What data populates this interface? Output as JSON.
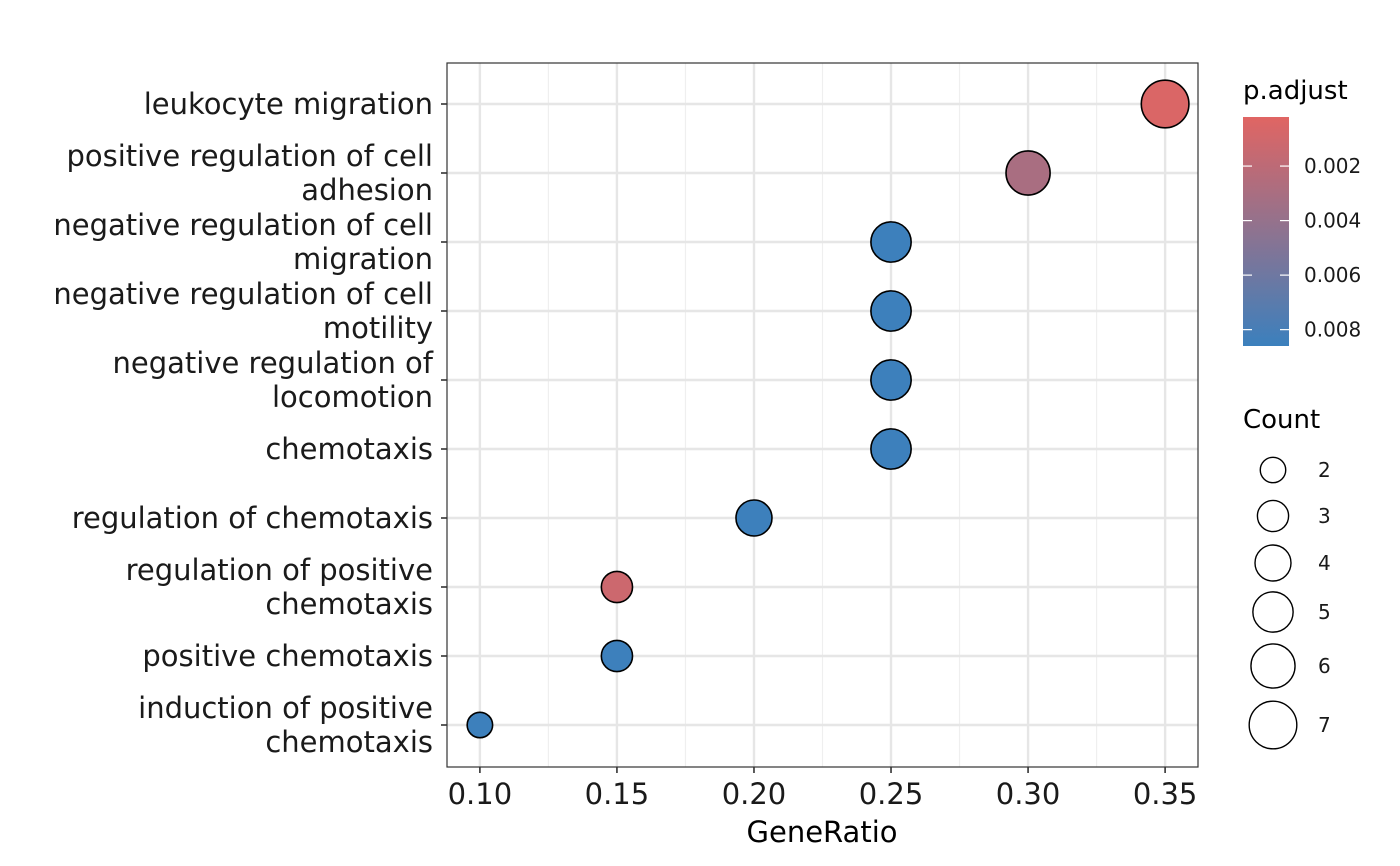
{
  "chart_data": {
    "type": "scatter",
    "title": "",
    "xlabel": "GeneRatio",
    "ylabel": "",
    "xlim": [
      0.088,
      0.362
    ],
    "xticks": [
      0.1,
      0.15,
      0.2,
      0.25,
      0.3,
      0.35
    ],
    "xtick_labels": [
      "0.10",
      "0.15",
      "0.20",
      "0.25",
      "0.30",
      "0.35"
    ],
    "grid": true,
    "categories": [
      "leukocyte migration",
      "positive regulation of cell adhesion",
      "negative regulation of cell migration",
      "negative regulation of cell motility",
      "negative regulation of locomotion",
      "chemotaxis",
      "regulation of chemotaxis",
      "regulation of positive chemotaxis",
      "positive chemotaxis",
      "induction of positive chemotaxis"
    ],
    "category_lines": [
      [
        "leukocyte migration"
      ],
      [
        "positive regulation of cell",
        "adhesion"
      ],
      [
        "negative regulation of cell",
        "migration"
      ],
      [
        "negative regulation of cell",
        "motility"
      ],
      [
        "negative regulation of",
        "locomotion"
      ],
      [
        "chemotaxis"
      ],
      [
        "regulation of chemotaxis"
      ],
      [
        "regulation of positive",
        "chemotaxis"
      ],
      [
        "positive chemotaxis"
      ],
      [
        "induction of positive",
        "chemotaxis"
      ]
    ],
    "gene_ratio": [
      0.35,
      0.3,
      0.25,
      0.25,
      0.25,
      0.25,
      0.2,
      0.15,
      0.15,
      0.1
    ],
    "count": [
      7,
      6,
      5,
      5,
      5,
      5,
      4,
      3,
      3,
      2
    ],
    "p_adjust": [
      0.0005,
      0.003,
      0.0085,
      0.0085,
      0.0085,
      0.0085,
      0.0085,
      0.0012,
      0.0085,
      0.0085
    ],
    "color_legend": {
      "title": "p.adjust",
      "ticks": [
        0.002,
        0.004,
        0.006,
        0.008
      ],
      "tick_labels": [
        "0.002",
        "0.004",
        "0.006",
        "0.008"
      ],
      "range": [
        0.0002,
        0.0086
      ],
      "low_color": "#E06563",
      "high_color": "#3B80BD"
    },
    "size_legend": {
      "title": "Count",
      "values": [
        2,
        3,
        4,
        5,
        6,
        7
      ],
      "labels": [
        "2",
        "3",
        "4",
        "5",
        "6",
        "7"
      ]
    },
    "legend_position": "right"
  }
}
